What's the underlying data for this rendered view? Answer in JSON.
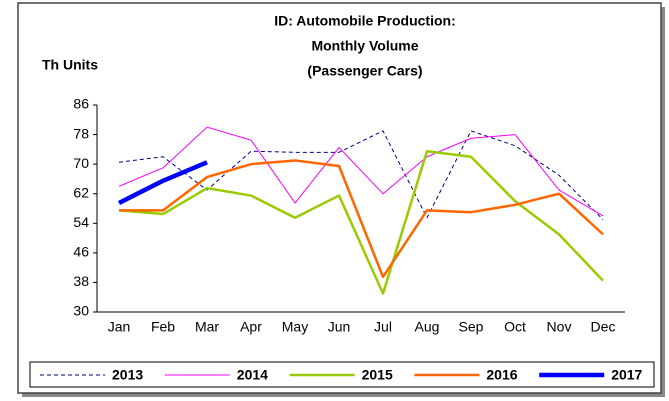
{
  "chart_data": {
    "type": "line",
    "title": [
      "ID: Automobile Production:",
      "Monthly Volume",
      "(Passenger Cars)"
    ],
    "y_axis_label": "Th Units",
    "categories": [
      "Jan",
      "Feb",
      "Mar",
      "Apr",
      "May",
      "Jun",
      "Jul",
      "Aug",
      "Sep",
      "Oct",
      "Nov",
      "Dec"
    ],
    "ylim": [
      30,
      86
    ],
    "yticks": [
      30,
      38,
      46,
      54,
      62,
      70,
      78,
      86
    ],
    "legend": "bottom",
    "series": [
      {
        "name": "2013",
        "color": "#000080",
        "dashed": true,
        "width": 1,
        "values": [
          70.5,
          72,
          63,
          73.5,
          73.2,
          73.2,
          79,
          55.5,
          79,
          75,
          67,
          55
        ]
      },
      {
        "name": "2014",
        "color": "#ff00ff",
        "dashed": false,
        "width": 1,
        "values": [
          64,
          69,
          80,
          76.5,
          59.5,
          74.5,
          62,
          72,
          77,
          78,
          63,
          56
        ]
      },
      {
        "name": "2015",
        "color": "#99cc00",
        "dashed": false,
        "width": 2.5,
        "values": [
          57.5,
          56.5,
          63.5,
          61.5,
          55.5,
          61.5,
          35,
          73.5,
          72,
          60,
          51,
          38.5
        ]
      },
      {
        "name": "2016",
        "color": "#ff6600",
        "dashed": false,
        "width": 2.5,
        "values": [
          57.5,
          57.5,
          66.5,
          70,
          71,
          69.5,
          39.5,
          57.5,
          57,
          59,
          62,
          51
        ]
      },
      {
        "name": "2017",
        "color": "#0000ff",
        "dashed": false,
        "width": 4.5,
        "values": [
          59.5,
          65.5,
          70.5,
          null,
          null,
          null,
          null,
          null,
          null,
          null,
          null,
          null
        ]
      }
    ]
  }
}
